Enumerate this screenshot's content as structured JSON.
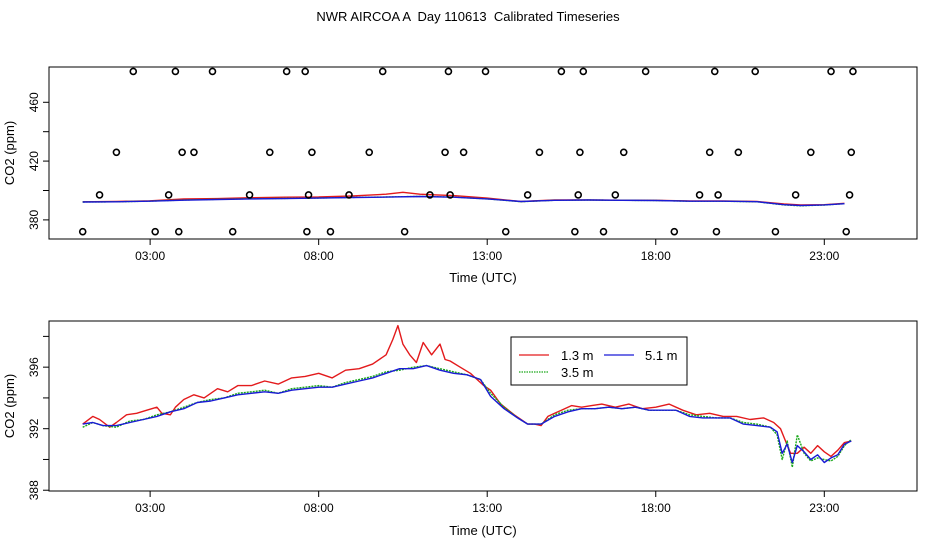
{
  "title": "NWR AIRCOA A  Day 110613  Calibrated Timeseries",
  "colors": {
    "s13": "#e31a1c",
    "s35": "#1aa81a",
    "s51": "#1a1ad6",
    "marker": "#000000"
  },
  "chart_data": [
    {
      "type": "line",
      "panel": "top",
      "xlabel": "Time (UTC)",
      "ylabel": "CO2 (ppm)",
      "xlim": [
        0.0,
        25.75
      ],
      "ylim": [
        367,
        484
      ],
      "xticks": [
        3,
        8,
        13,
        18,
        23
      ],
      "xtick_labels": [
        "03:00",
        "08:00",
        "13:00",
        "18:00",
        "23:00"
      ],
      "yticks": [
        380,
        420,
        460
      ],
      "yticks_minor": [
        400,
        440
      ],
      "ytick_labels": [
        "380",
        "420",
        "460"
      ],
      "series": [
        {
          "name": "1.3 m",
          "color_key": "s13",
          "x": [
            1.0,
            2.0,
            3.0,
            4.0,
            5.0,
            6.0,
            7.0,
            8.0,
            9.0,
            10.0,
            10.5,
            11.0,
            11.5,
            12.0,
            13.0,
            14.0,
            15.0,
            16.0,
            17.0,
            18.0,
            19.0,
            20.0,
            21.0,
            21.8,
            22.3,
            23.0,
            23.6
          ],
          "y": [
            392.3,
            392.5,
            393.0,
            394.2,
            394.5,
            395.1,
            395.4,
            395.6,
            396.3,
            397.5,
            398.8,
            397.5,
            397.0,
            396.5,
            394.8,
            392.5,
            393.5,
            393.6,
            393.4,
            393.3,
            392.9,
            392.9,
            392.5,
            390.8,
            390.2,
            390.3,
            391.3
          ]
        },
        {
          "name": "3.5 m",
          "color_key": "s35",
          "x": [
            1.0,
            2.0,
            3.0,
            4.0,
            5.0,
            6.0,
            7.0,
            8.0,
            9.0,
            10.0,
            11.0,
            12.0,
            13.0,
            14.0,
            15.0,
            16.0,
            17.0,
            18.0,
            19.0,
            20.0,
            21.0,
            21.8,
            22.3,
            23.0,
            23.6
          ],
          "y": [
            392.2,
            392.3,
            392.8,
            393.5,
            394.0,
            394.4,
            394.6,
            394.9,
            395.3,
            395.6,
            396.0,
            395.5,
            394.3,
            392.4,
            393.3,
            393.5,
            393.3,
            393.2,
            392.7,
            392.7,
            392.3,
            390.2,
            389.6,
            390.1,
            391.0
          ]
        },
        {
          "name": "5.1 m",
          "color_key": "s51",
          "x": [
            1.0,
            2.0,
            3.0,
            4.0,
            5.0,
            6.0,
            7.0,
            8.0,
            9.0,
            10.0,
            11.0,
            12.0,
            13.0,
            14.0,
            15.0,
            16.0,
            17.0,
            18.0,
            19.0,
            20.0,
            21.0,
            21.8,
            22.3,
            23.0,
            23.6
          ],
          "y": [
            392.2,
            392.3,
            392.7,
            393.4,
            393.9,
            394.3,
            394.5,
            394.8,
            395.2,
            395.5,
            395.9,
            395.4,
            394.3,
            392.5,
            393.3,
            393.5,
            393.3,
            393.2,
            392.7,
            392.7,
            392.4,
            390.3,
            389.8,
            390.2,
            391.0
          ]
        },
        {
          "name": "markers",
          "color_key": "marker",
          "marker": "circle",
          "x": [
            1.0,
            1.5,
            2.0,
            2.5,
            3.15,
            3.55,
            3.95,
            3.75,
            3.85,
            4.3,
            4.85,
            5.45,
            5.95,
            6.55,
            7.05,
            7.6,
            7.65,
            7.7,
            7.8,
            8.35,
            8.9,
            9.5,
            9.9,
            10.55,
            11.3,
            11.75,
            11.85,
            11.9,
            12.3,
            12.95,
            13.55,
            14.2,
            14.55,
            15.2,
            15.6,
            15.7,
            15.75,
            15.85,
            16.45,
            16.8,
            17.05,
            17.7,
            18.55,
            19.3,
            19.6,
            19.75,
            19.8,
            19.85,
            20.45,
            20.95,
            21.55,
            22.15,
            22.6,
            23.2,
            23.65,
            23.75,
            23.8,
            23.85
          ],
          "y": [
            372,
            397,
            426,
            481,
            372,
            397,
            426,
            481,
            372,
            426,
            481,
            372,
            397,
            426,
            481,
            481,
            372,
            397,
            426,
            372,
            397,
            426,
            481,
            372,
            397,
            426,
            481,
            397,
            426,
            481,
            372,
            397,
            426,
            481,
            372,
            397,
            426,
            481,
            372,
            397,
            426,
            481,
            372,
            397,
            426,
            481,
            372,
            397,
            426,
            481,
            372,
            397,
            426,
            481,
            372,
            397,
            426,
            481
          ]
        }
      ]
    },
    {
      "type": "line",
      "panel": "bottom",
      "xlabel": "Time (UTC)",
      "ylabel": "CO2 (ppm)",
      "xlim": [
        0.0,
        25.75
      ],
      "ylim": [
        387.95,
        399.0
      ],
      "xticks": [
        3,
        8,
        13,
        18,
        23
      ],
      "xtick_labels": [
        "03:00",
        "08:00",
        "13:00",
        "18:00",
        "23:00"
      ],
      "yticks": [
        388,
        392,
        396
      ],
      "yticks_minor": [
        390,
        394,
        398
      ],
      "ytick_labels": [
        "388",
        "392",
        "396"
      ],
      "legend": {
        "position": "top-center",
        "entries": [
          "1.3 m",
          "3.5 m",
          "5.1 m"
        ]
      },
      "series": [
        {
          "name": "1.3 m",
          "color_key": "s13",
          "x": [
            1.0,
            1.3,
            1.5,
            1.8,
            2.0,
            2.3,
            2.6,
            2.9,
            3.2,
            3.35,
            3.6,
            3.75,
            4.0,
            4.3,
            4.6,
            5.0,
            5.3,
            5.6,
            6.0,
            6.4,
            6.8,
            7.2,
            7.6,
            8.0,
            8.4,
            8.8,
            9.2,
            9.6,
            10.0,
            10.2,
            10.35,
            10.5,
            10.7,
            10.9,
            11.1,
            11.35,
            11.6,
            11.75,
            11.9,
            12.2,
            12.5,
            12.7,
            12.9,
            13.1,
            13.4,
            13.8,
            14.2,
            14.4,
            14.6,
            14.8,
            15.0,
            15.2,
            15.5,
            15.8,
            16.1,
            16.4,
            16.8,
            17.2,
            17.6,
            18.0,
            18.4,
            18.8,
            19.2,
            19.6,
            20.0,
            20.4,
            20.8,
            21.2,
            21.5,
            21.7,
            21.85,
            22.0,
            22.2,
            22.4,
            22.6,
            22.8,
            23.0,
            23.2,
            23.4,
            23.6,
            23.8
          ],
          "y": [
            392.3,
            392.8,
            392.6,
            392.1,
            392.4,
            392.9,
            393.0,
            393.2,
            393.4,
            393.0,
            392.9,
            393.4,
            393.9,
            394.2,
            394.0,
            394.6,
            394.4,
            394.8,
            394.8,
            395.1,
            394.9,
            395.3,
            395.4,
            395.6,
            395.3,
            395.8,
            395.9,
            396.2,
            396.8,
            397.8,
            398.7,
            397.5,
            396.8,
            396.3,
            397.6,
            396.8,
            397.5,
            396.5,
            396.4,
            396.0,
            395.6,
            395.2,
            394.8,
            394.5,
            393.6,
            392.9,
            392.3,
            392.3,
            392.2,
            392.8,
            393.0,
            393.2,
            393.5,
            393.4,
            393.5,
            393.6,
            393.4,
            393.6,
            393.3,
            393.4,
            393.6,
            393.2,
            392.9,
            393.0,
            392.8,
            392.8,
            392.6,
            392.7,
            392.4,
            392.0,
            391.2,
            390.4,
            390.4,
            390.8,
            390.4,
            390.9,
            390.5,
            390.2,
            390.6,
            391.1,
            391.2
          ]
        },
        {
          "name": "3.5 m",
          "color_key": "s35",
          "x": [
            1.0,
            1.3,
            1.6,
            2.0,
            2.4,
            2.8,
            3.2,
            3.6,
            4.0,
            4.4,
            4.8,
            5.2,
            5.6,
            6.0,
            6.4,
            6.8,
            7.2,
            7.6,
            8.0,
            8.4,
            8.8,
            9.2,
            9.6,
            10.0,
            10.4,
            10.8,
            11.2,
            11.6,
            12.0,
            12.4,
            12.8,
            13.1,
            13.5,
            13.9,
            14.2,
            14.6,
            15.0,
            15.4,
            15.8,
            16.2,
            16.6,
            17.0,
            17.4,
            17.8,
            18.2,
            18.6,
            19.0,
            19.4,
            19.8,
            20.2,
            20.6,
            21.0,
            21.4,
            21.6,
            21.75,
            21.9,
            22.05,
            22.2,
            22.4,
            22.6,
            22.8,
            23.0,
            23.2,
            23.4,
            23.6,
            23.8
          ],
          "y": [
            392.1,
            392.4,
            392.2,
            392.1,
            392.5,
            392.6,
            392.9,
            393.1,
            393.4,
            393.7,
            393.9,
            394.0,
            394.3,
            394.4,
            394.5,
            394.3,
            394.6,
            394.7,
            394.8,
            394.7,
            395.0,
            395.2,
            395.4,
            395.7,
            395.8,
            396.0,
            396.1,
            395.9,
            395.7,
            395.5,
            395.2,
            394.3,
            393.4,
            392.7,
            392.3,
            392.3,
            392.9,
            393.2,
            393.3,
            393.3,
            393.4,
            393.3,
            393.4,
            393.2,
            393.2,
            393.2,
            392.9,
            392.8,
            392.7,
            392.7,
            392.4,
            392.3,
            392.1,
            391.6,
            390.0,
            391.2,
            389.5,
            391.6,
            390.4,
            389.9,
            390.1,
            390.0,
            389.9,
            390.2,
            390.9,
            391.3
          ]
        },
        {
          "name": "5.1 m",
          "color_key": "s51",
          "x": [
            1.0,
            1.3,
            1.6,
            2.0,
            2.4,
            2.8,
            3.2,
            3.6,
            4.0,
            4.4,
            4.8,
            5.2,
            5.6,
            6.0,
            6.4,
            6.8,
            7.2,
            7.6,
            8.0,
            8.4,
            8.8,
            9.2,
            9.6,
            10.0,
            10.4,
            10.8,
            11.2,
            11.6,
            12.0,
            12.4,
            12.8,
            13.1,
            13.5,
            13.9,
            14.2,
            14.6,
            15.0,
            15.4,
            15.8,
            16.2,
            16.6,
            17.0,
            17.4,
            17.8,
            18.2,
            18.6,
            19.0,
            19.4,
            19.8,
            20.2,
            20.6,
            21.0,
            21.4,
            21.6,
            21.75,
            21.9,
            22.05,
            22.2,
            22.4,
            22.6,
            22.8,
            23.0,
            23.2,
            23.4,
            23.6,
            23.8
          ],
          "y": [
            392.3,
            392.4,
            392.2,
            392.2,
            392.4,
            392.6,
            392.8,
            393.1,
            393.3,
            393.7,
            393.8,
            394.0,
            394.2,
            394.3,
            394.4,
            394.3,
            394.5,
            394.6,
            394.7,
            394.7,
            394.9,
            395.1,
            395.3,
            395.6,
            395.9,
            395.9,
            396.1,
            395.8,
            395.6,
            395.5,
            395.2,
            394.1,
            393.3,
            392.7,
            392.3,
            392.3,
            392.8,
            393.1,
            393.3,
            393.3,
            393.4,
            393.3,
            393.4,
            393.2,
            393.2,
            393.2,
            392.8,
            392.7,
            392.7,
            392.7,
            392.3,
            392.2,
            392.1,
            391.8,
            390.4,
            391.0,
            389.8,
            390.9,
            390.5,
            390.0,
            390.3,
            389.8,
            390.1,
            390.3,
            391.0,
            391.2
          ]
        }
      ]
    }
  ]
}
